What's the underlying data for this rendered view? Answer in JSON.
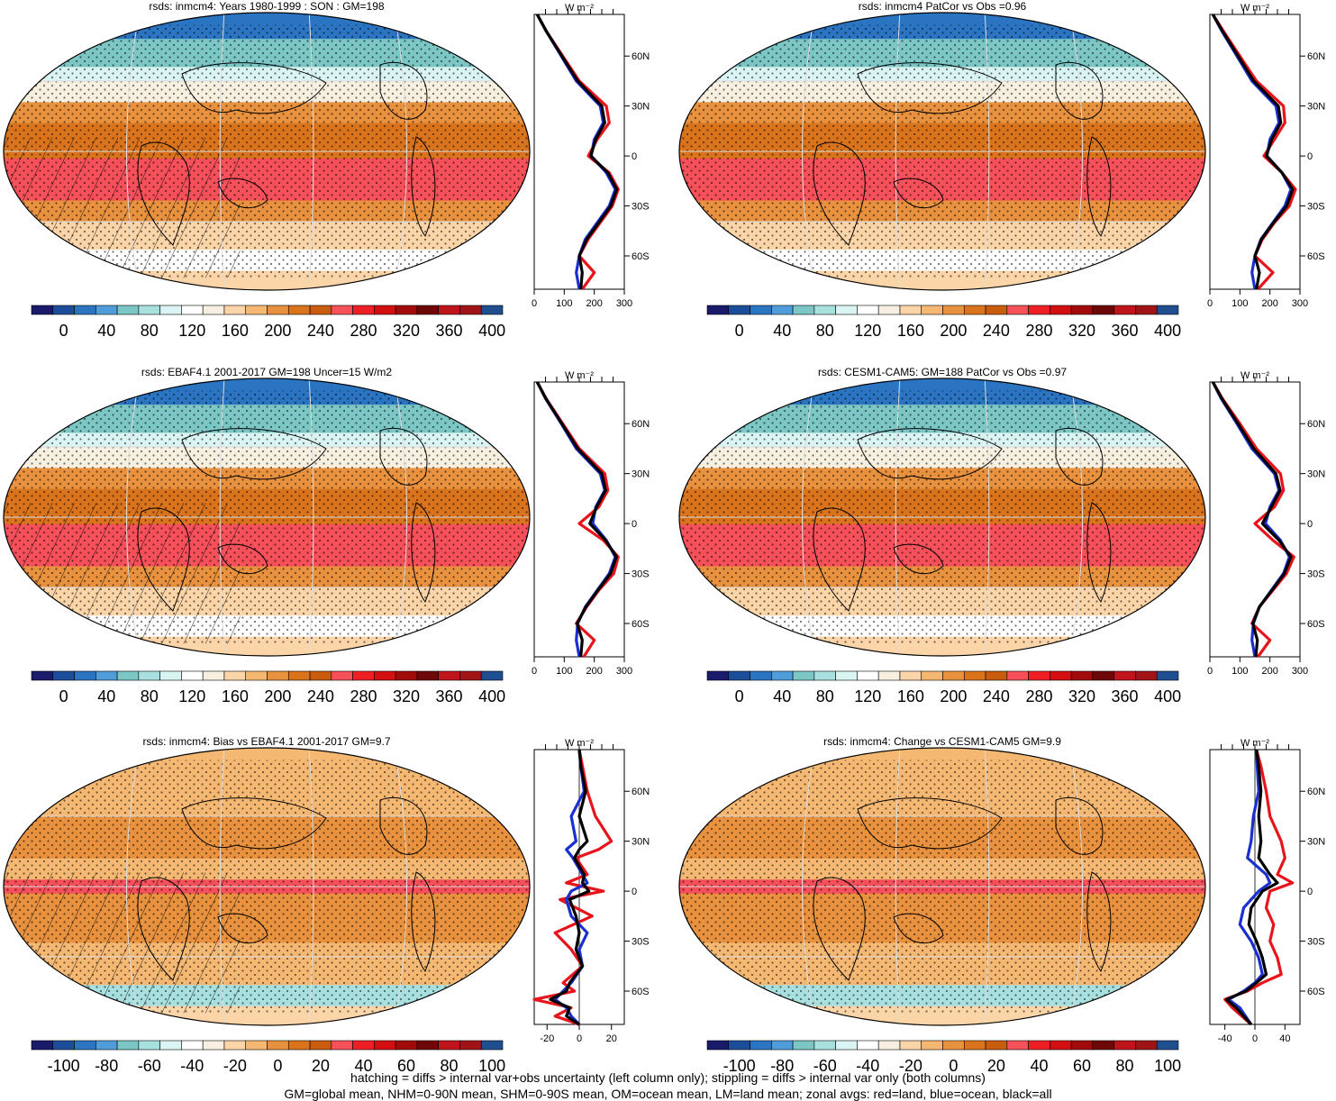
{
  "colors": {
    "abs_scale": [
      "#1b1b6b",
      "#1c4d99",
      "#2a74c2",
      "#4f9ddb",
      "#7cc6c6",
      "#a8e0e0",
      "#daf4f4",
      "#ffffff",
      "#f7f0e0",
      "#fbd5a8",
      "#f5b873",
      "#e8913e",
      "#d9731c",
      "#c95c0e",
      "#f6505a",
      "#ee2026",
      "#d40f12",
      "#a20b0b",
      "#6e0808",
      "#c0141c",
      "#a01418",
      "#1f4f8f"
    ],
    "diff_scale": [
      "#1b1b6b",
      "#1c4d99",
      "#2a74c2",
      "#4f9ddb",
      "#7cc6c6",
      "#a8e0e0",
      "#daf4f4",
      "#ffffff",
      "#f7f0e0",
      "#fbd5a8",
      "#f5b873",
      "#e8913e",
      "#d9731c",
      "#c95c0e",
      "#f6505a",
      "#ee2026",
      "#d40f12",
      "#a20b0b",
      "#6e0808",
      "#c0141c",
      "#a01418",
      "#1f4f8f"
    ],
    "land": "#e8141c",
    "ocean": "#1a2fd0",
    "all": "#000000"
  },
  "footer": {
    "line1": "hatching = diffs > internal var+obs uncertainty (left column only); stippling = diffs > internal var only (both columns)",
    "line2": "GM=global mean, NHM=0-90N mean, SHM=0-90S mean, OM=ocean mean, LM=land mean; zonal avgs: red=land, blue=ocean, black=all"
  },
  "chart_data": [
    {
      "type": "heatmap",
      "title": "rsds: inmcm4: Years 1980-1999 : SON : GM=198",
      "colorbar_labels": [
        "0",
        "40",
        "80",
        "120",
        "160",
        "200",
        "240",
        "280",
        "320",
        "360",
        "400"
      ],
      "profile": {
        "unit": "W m⁻²",
        "xlim": [
          0,
          300
        ],
        "xticks": [
          "0",
          "100",
          "200",
          "300"
        ],
        "yticks": [
          "60N",
          "30N",
          "0",
          "30S",
          "60S"
        ],
        "lat": [
          85,
          75,
          60,
          45,
          30,
          20,
          10,
          0,
          -10,
          -20,
          -30,
          -40,
          -50,
          -60,
          -70,
          -80
        ],
        "land": [
          10,
          40,
          95,
          150,
          240,
          250,
          210,
          180,
          250,
          280,
          260,
          220,
          180,
          150,
          200,
          160
        ],
        "ocean": [
          10,
          40,
          90,
          140,
          220,
          230,
          200,
          190,
          240,
          270,
          250,
          210,
          170,
          150,
          140,
          150
        ],
        "all": [
          10,
          40,
          92,
          145,
          225,
          235,
          205,
          188,
          245,
          275,
          255,
          215,
          175,
          150,
          160,
          155
        ]
      }
    },
    {
      "type": "heatmap",
      "title": "rsds: inmcm4 PatCor vs Obs =0.96",
      "colorbar_labels": [
        "0",
        "40",
        "80",
        "120",
        "160",
        "200",
        "240",
        "280",
        "320",
        "360",
        "400"
      ],
      "profile": {
        "unit": "W m⁻²",
        "xlim": [
          0,
          300
        ],
        "xticks": [
          "0",
          "100",
          "200",
          "300"
        ],
        "yticks": [
          "60N",
          "30N",
          "0",
          "30S",
          "60S"
        ],
        "lat": [
          85,
          75,
          60,
          45,
          30,
          20,
          10,
          0,
          -10,
          -20,
          -30,
          -40,
          -50,
          -60,
          -70,
          -80
        ],
        "land": [
          10,
          45,
          100,
          155,
          245,
          250,
          215,
          180,
          240,
          285,
          265,
          215,
          175,
          150,
          210,
          160
        ],
        "ocean": [
          10,
          40,
          90,
          140,
          220,
          230,
          200,
          190,
          240,
          270,
          250,
          210,
          170,
          150,
          140,
          150
        ],
        "all": [
          10,
          42,
          94,
          146,
          228,
          236,
          206,
          188,
          240,
          276,
          256,
          212,
          172,
          150,
          165,
          155
        ]
      }
    },
    {
      "type": "heatmap",
      "title": "rsds: EBAF4.1 2001-2017 GM=198 Uncer=15 W/m2",
      "colorbar_labels": [
        "0",
        "40",
        "80",
        "120",
        "160",
        "200",
        "240",
        "280",
        "320",
        "360",
        "400"
      ],
      "profile": {
        "unit": "W m⁻²",
        "xlim": [
          0,
          300
        ],
        "xticks": [
          "0",
          "100",
          "200",
          "300"
        ],
        "yticks": [
          "60N",
          "30N",
          "0",
          "30S",
          "60S"
        ],
        "lat": [
          85,
          75,
          60,
          45,
          30,
          20,
          10,
          0,
          -10,
          -20,
          -30,
          -40,
          -50,
          -60,
          -70,
          -80
        ],
        "land": [
          10,
          40,
          95,
          150,
          235,
          245,
          215,
          150,
          230,
          280,
          265,
          215,
          175,
          140,
          200,
          165
        ],
        "ocean": [
          10,
          38,
          90,
          140,
          220,
          235,
          205,
          195,
          240,
          270,
          250,
          210,
          170,
          145,
          140,
          150
        ],
        "all": [
          10,
          39,
          92,
          145,
          225,
          238,
          208,
          185,
          238,
          274,
          254,
          212,
          172,
          143,
          160,
          155
        ]
      }
    },
    {
      "type": "heatmap",
      "title": "rsds: CESM1-CAM5: GM=188 PatCor vs Obs =0.97",
      "colorbar_labels": [
        "0",
        "40",
        "80",
        "120",
        "160",
        "200",
        "240",
        "280",
        "320",
        "360",
        "400"
      ],
      "profile": {
        "unit": "W m⁻²",
        "xlim": [
          0,
          300
        ],
        "xticks": [
          "0",
          "100",
          "200",
          "300"
        ],
        "yticks": [
          "60N",
          "30N",
          "0",
          "30S",
          "60S"
        ],
        "lat": [
          85,
          75,
          60,
          45,
          30,
          20,
          10,
          0,
          -10,
          -20,
          -30,
          -40,
          -50,
          -60,
          -70,
          -80
        ],
        "land": [
          10,
          42,
          100,
          155,
          235,
          245,
          215,
          150,
          210,
          280,
          255,
          210,
          165,
          140,
          200,
          160
        ],
        "ocean": [
          10,
          38,
          90,
          140,
          215,
          230,
          200,
          185,
          235,
          265,
          245,
          205,
          165,
          145,
          140,
          150
        ],
        "all": [
          10,
          40,
          94,
          146,
          220,
          234,
          205,
          175,
          230,
          270,
          248,
          207,
          165,
          143,
          158,
          153
        ]
      }
    },
    {
      "type": "heatmap",
      "title": "rsds: inmcm4: Bias vs EBAF4.1 2001-2017  GM=9.7",
      "colorbar_labels": [
        "-100",
        "-80",
        "-60",
        "-40",
        "-20",
        "0",
        "20",
        "40",
        "60",
        "80",
        "100"
      ],
      "profile": {
        "unit": "W m⁻²",
        "xlim": [
          -28,
          28
        ],
        "xticks": [
          "-20",
          "0",
          "20"
        ],
        "yticks": [
          "60N",
          "30N",
          "0",
          "30S",
          "60S"
        ],
        "lat": [
          85,
          75,
          60,
          45,
          30,
          25,
          20,
          10,
          5,
          0,
          -5,
          -15,
          -25,
          -35,
          -45,
          -55,
          -60,
          -65,
          -70,
          -75,
          -80
        ],
        "land": [
          0,
          2,
          5,
          10,
          20,
          12,
          -2,
          5,
          -8,
          15,
          -12,
          8,
          -15,
          -5,
          2,
          -10,
          -3,
          -28,
          -5,
          -15,
          0
        ],
        "ocean": [
          0,
          1,
          3,
          -5,
          -2,
          -8,
          -4,
          2,
          5,
          -5,
          -8,
          -5,
          5,
          0,
          2,
          -5,
          -10,
          -15,
          -8,
          -5,
          0
        ],
        "all": [
          0,
          1,
          4,
          0,
          5,
          0,
          -3,
          3,
          2,
          6,
          -6,
          -2,
          0,
          -2,
          2,
          -6,
          -8,
          -18,
          -6,
          -8,
          0
        ]
      }
    },
    {
      "type": "heatmap",
      "title": "rsds: inmcm4: Change vs CESM1-CAM5 GM=9.9",
      "colorbar_labels": [
        "-100",
        "-80",
        "-60",
        "-40",
        "-20",
        "0",
        "20",
        "40",
        "60",
        "80",
        "100"
      ],
      "profile": {
        "unit": "W m⁻²",
        "xlim": [
          -60,
          60
        ],
        "xticks": [
          "-40",
          "0",
          "40"
        ],
        "yticks": [
          "60N",
          "30N",
          "0",
          "30S",
          "60S"
        ],
        "lat": [
          85,
          75,
          60,
          45,
          30,
          20,
          10,
          5,
          0,
          -10,
          -20,
          -30,
          -40,
          -50,
          -55,
          -60,
          -65,
          -70,
          -80
        ],
        "land": [
          2,
          8,
          15,
          20,
          35,
          40,
          30,
          50,
          20,
          15,
          25,
          20,
          30,
          35,
          10,
          -10,
          -40,
          -30,
          -5
        ],
        "ocean": [
          2,
          3,
          5,
          -2,
          -5,
          -10,
          15,
          20,
          5,
          -15,
          -20,
          -5,
          5,
          10,
          0,
          -15,
          -35,
          -20,
          -5
        ],
        "all": [
          2,
          5,
          8,
          5,
          8,
          5,
          20,
          30,
          10,
          -5,
          -8,
          2,
          10,
          15,
          2,
          -12,
          -38,
          -25,
          -5
        ]
      }
    }
  ]
}
